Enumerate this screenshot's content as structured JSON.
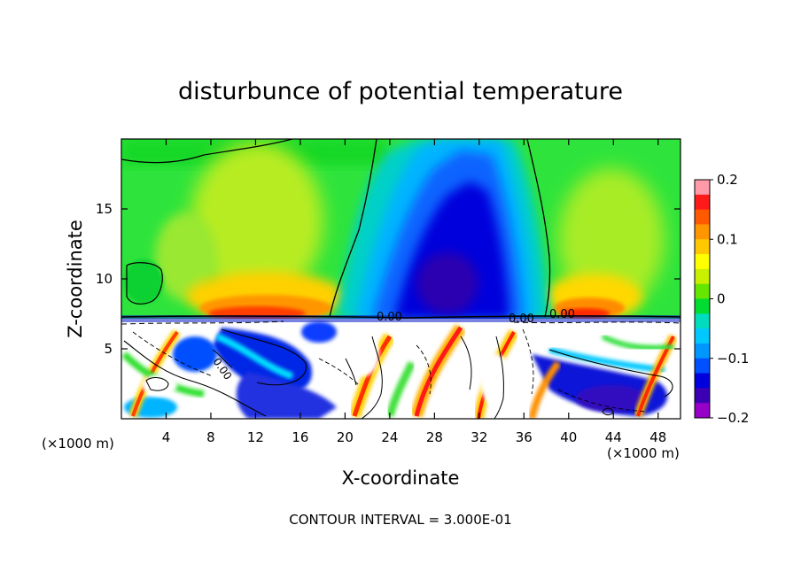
{
  "chart_data": {
    "type": "heatmap",
    "title": "disturbunce of potential temperature",
    "xlabel": "X-coordinate",
    "ylabel": "Z-coordinate",
    "x_unit_label": "(×1000 m)",
    "z_unit_label": "(×1000 m)",
    "xlim": [
      0,
      50
    ],
    "ylim": [
      0,
      20
    ],
    "x_ticks": [
      4,
      8,
      12,
      16,
      20,
      24,
      28,
      32,
      36,
      40,
      44,
      48
    ],
    "y_ticks": [
      5,
      10,
      15
    ],
    "colorbar": {
      "range": [
        -0.2,
        0.2
      ],
      "tick_values": [
        0.2,
        0.1,
        0,
        -0.1,
        -0.2
      ],
      "tick_labels": [
        "0.2",
        "0.1",
        "0",
        "−0.1",
        "−0.2"
      ],
      "colors": [
        "#ff9aa8",
        "#ff1a1a",
        "#ff5a00",
        "#ff9600",
        "#ffc800",
        "#ffff00",
        "#c8f000",
        "#64e600",
        "#00dc32",
        "#00dcbe",
        "#00c8ff",
        "#0096ff",
        "#0050ff",
        "#0000dc",
        "#3c00b4",
        "#9600c8"
      ]
    },
    "contour_interval_text": "CONTOUR INTERVAL = 3.000E-01",
    "contour_labels": [
      "0.00",
      "0.00",
      "0.00",
      "0.00"
    ]
  }
}
